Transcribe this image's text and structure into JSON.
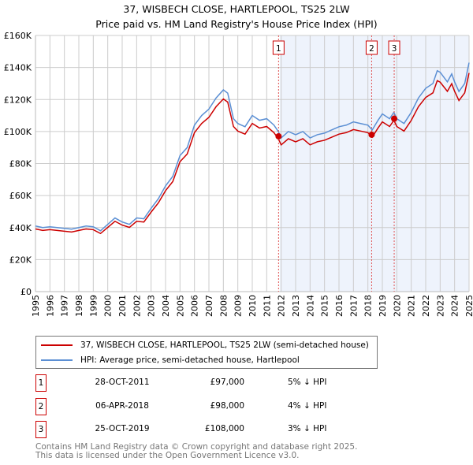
{
  "chart_data": {
    "type": "line",
    "title": "37, WISBECH CLOSE, HARTLEPOOL, TS25 2LW",
    "subtitle": "Price paid vs. HM Land Registry's House Price Index (HPI)",
    "xlim": [
      1995,
      2025
    ],
    "ylim": [
      0,
      160000
    ],
    "yticks": [
      0,
      20000,
      40000,
      60000,
      80000,
      100000,
      120000,
      140000,
      160000
    ],
    "ytick_labels": [
      "£0",
      "£20K",
      "£40K",
      "£60K",
      "£80K",
      "£100K",
      "£120K",
      "£140K",
      "£160K"
    ],
    "xtick_labels": [
      "1995",
      "1996",
      "1997",
      "1998",
      "1999",
      "2000",
      "2001",
      "2002",
      "2003",
      "2004",
      "2005",
      "2006",
      "2007",
      "2008",
      "2009",
      "2010",
      "2011",
      "2012",
      "2013",
      "2014",
      "2015",
      "2016",
      "2017",
      "2018",
      "2019",
      "2020",
      "2021",
      "2022",
      "2023",
      "2024",
      "2025"
    ],
    "grid": true,
    "shaded_from": 2011.9,
    "series": [
      {
        "name": "HPI: Average price, semi-detached house, Hartlepool",
        "color": "#5b8fd4",
        "x": [
          1995,
          1995.5,
          1996,
          1996.5,
          1997,
          1997.5,
          1998,
          1998.5,
          1999,
          1999.5,
          2000,
          2000.5,
          2001,
          2001.5,
          2002,
          2002.5,
          2003,
          2003.5,
          2004,
          2004.5,
          2005,
          2005.5,
          2006,
          2006.5,
          2007,
          2007.5,
          2008,
          2008.3,
          2008.7,
          2009,
          2009.5,
          2010,
          2010.5,
          2011,
          2011.5,
          2011.8,
          2012,
          2012.5,
          2013,
          2013.5,
          2014,
          2014.5,
          2015,
          2015.5,
          2016,
          2016.5,
          2017,
          2017.5,
          2018,
          2018.3,
          2018.7,
          2019,
          2019.5,
          2019.8,
          2020,
          2020.5,
          2021,
          2021.5,
          2022,
          2022.5,
          2022.8,
          2023,
          2023.5,
          2023.8,
          2024,
          2024.3,
          2024.7,
          2025
        ],
        "y": [
          41000,
          40000,
          40500,
          40000,
          39500,
          39000,
          40000,
          41000,
          40500,
          38000,
          42000,
          46000,
          43500,
          42000,
          46000,
          45500,
          52000,
          58000,
          66000,
          72000,
          85000,
          90000,
          104000,
          110000,
          114000,
          121000,
          126000,
          124000,
          108000,
          105000,
          103000,
          110000,
          107000,
          108000,
          104000,
          100000,
          96000,
          100000,
          98000,
          100000,
          96000,
          98000,
          99000,
          101000,
          103000,
          104000,
          106000,
          105000,
          104000,
          101000,
          107000,
          111000,
          108000,
          112000,
          108000,
          105000,
          112000,
          121000,
          127000,
          130000,
          138000,
          137000,
          131000,
          136000,
          131000,
          125000,
          130000,
          143000
        ]
      },
      {
        "name": "37, WISBECH CLOSE, HARTLEPOOL, TS25 2LW (semi-detached house)",
        "color": "#cc0000",
        "ratio": 0.955
      }
    ],
    "sales": [
      {
        "n": "1",
        "x": 2011.82,
        "date": "28-OCT-2011",
        "price": 97000,
        "price_label": "£97,000",
        "hpi": "5% ↓ HPI"
      },
      {
        "n": "2",
        "x": 2018.26,
        "date": "06-APR-2018",
        "price": 98000,
        "price_label": "£98,000",
        "hpi": "4% ↓ HPI"
      },
      {
        "n": "3",
        "x": 2019.82,
        "date": "25-OCT-2019",
        "price": 108000,
        "price_label": "£108,000",
        "hpi": "3% ↓ HPI"
      }
    ]
  },
  "legend": {
    "property": "37, WISBECH CLOSE, HARTLEPOOL, TS25 2LW (semi-detached house)",
    "hpi": "HPI: Average price, semi-detached house, Hartlepool"
  },
  "footer": {
    "line1": "Contains HM Land Registry data © Crown copyright and database right 2025.",
    "line2": "This data is licensed under the Open Government Licence v3.0."
  }
}
